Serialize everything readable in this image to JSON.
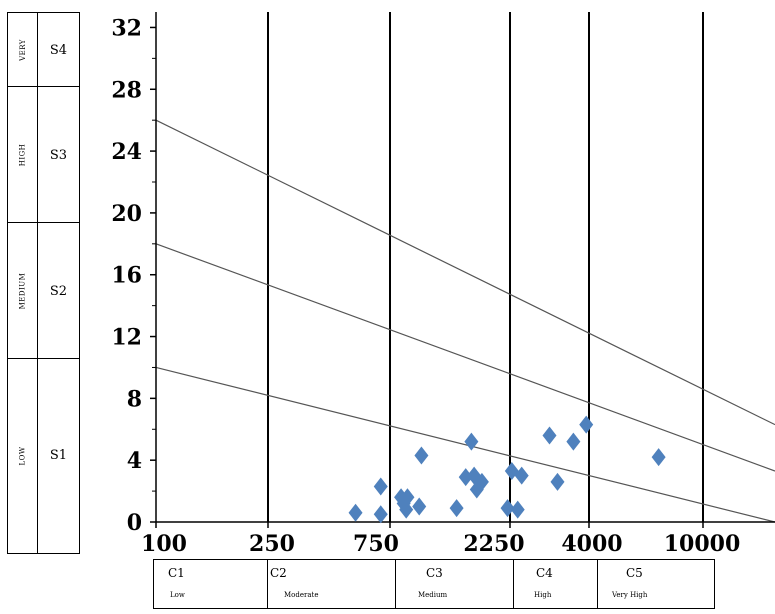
{
  "chart_data": {
    "type": "scatter",
    "title": "",
    "xlabel": "",
    "ylabel": "",
    "x_tick_labels": [
      "100",
      "250",
      "750",
      "2250",
      "4000",
      "10000"
    ],
    "y_ticks": [
      0,
      4,
      8,
      12,
      16,
      20,
      24,
      28,
      32
    ],
    "ylim": [
      0,
      33
    ],
    "grid": "vertical lines at class boundaries",
    "marker_color": "#4f81bd",
    "classification_lines": [
      {
        "name": "S1/S2 boundary",
        "y_start": 10,
        "y_end": 0
      },
      {
        "name": "S2/S3 boundary",
        "y_start": 18,
        "y_end": 3.3
      },
      {
        "name": "S3/S4 boundary",
        "y_start": 26,
        "y_end": 6.3
      }
    ],
    "points": [
      {
        "x": 550,
        "y": 0.6
      },
      {
        "x": 690,
        "y": 2.3
      },
      {
        "x": 690,
        "y": 0.5
      },
      {
        "x": 830,
        "y": 1.6
      },
      {
        "x": 850,
        "y": 1.2
      },
      {
        "x": 870,
        "y": 0.8
      },
      {
        "x": 880,
        "y": 1.6
      },
      {
        "x": 980,
        "y": 1.0
      },
      {
        "x": 1000,
        "y": 4.3
      },
      {
        "x": 1380,
        "y": 0.9
      },
      {
        "x": 1500,
        "y": 2.9
      },
      {
        "x": 1580,
        "y": 5.2
      },
      {
        "x": 1620,
        "y": 3.0
      },
      {
        "x": 1660,
        "y": 2.1
      },
      {
        "x": 1740,
        "y": 2.6
      },
      {
        "x": 2200,
        "y": 0.9
      },
      {
        "x": 2280,
        "y": 3.3
      },
      {
        "x": 2380,
        "y": 0.8
      },
      {
        "x": 2450,
        "y": 3.0
      },
      {
        "x": 3000,
        "y": 5.6
      },
      {
        "x": 3180,
        "y": 2.6
      },
      {
        "x": 3570,
        "y": 5.2
      },
      {
        "x": 3920,
        "y": 6.3
      },
      {
        "x": 7000,
        "y": 4.2
      }
    ]
  },
  "sodium_hazard_table": {
    "rows": [
      {
        "hazard": "VERY",
        "class": "S4"
      },
      {
        "hazard": "HIGH",
        "class": "S3"
      },
      {
        "hazard": "MEDIUM",
        "class": "S2"
      },
      {
        "hazard": "LOW",
        "class": "S1"
      }
    ]
  },
  "salinity_hazard_table": {
    "cells": [
      {
        "code": "C1",
        "desc": "Low"
      },
      {
        "code": "C2",
        "desc": "Moderate"
      },
      {
        "code": "C3",
        "desc": "Medium"
      },
      {
        "code": "C4",
        "desc": "High"
      },
      {
        "code": "C5",
        "desc": "Very High"
      }
    ]
  }
}
